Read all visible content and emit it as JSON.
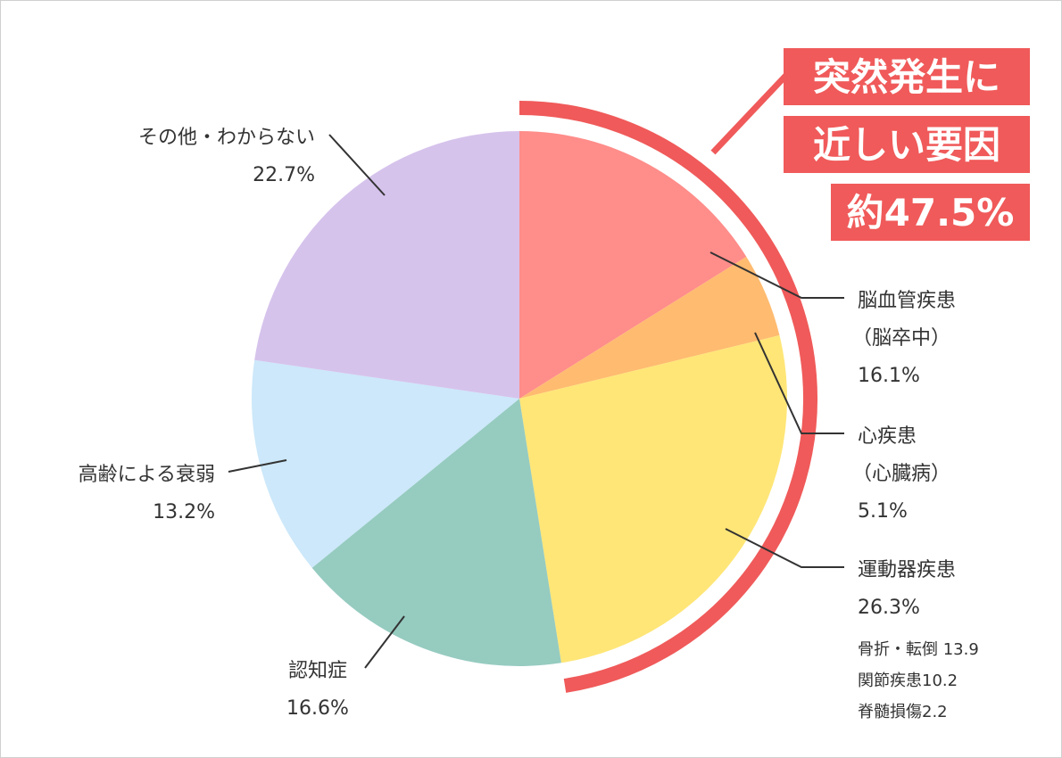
{
  "chart_data": {
    "type": "pie",
    "slices": [
      {
        "name": "脳血管疾患",
        "label_lines": [
          "脳血管疾患",
          "（脳卒中）"
        ],
        "value": 16.1,
        "value_label": "16.1%",
        "color": "#ff8d8a"
      },
      {
        "name": "心疾患",
        "label_lines": [
          "心疾患",
          "（心臓病）"
        ],
        "value": 5.1,
        "value_label": "5.1%",
        "color": "#ffbb70"
      },
      {
        "name": "運動器疾患",
        "label_lines": [
          "運動器疾患"
        ],
        "value": 26.3,
        "value_label": "26.3%",
        "color": "#ffe677",
        "details": [
          "骨折・転倒 13.9",
          "関節疾患10.2",
          "脊髄損傷2.2"
        ]
      },
      {
        "name": "認知症",
        "label_lines": [
          "認知症"
        ],
        "value": 16.6,
        "value_label": "16.6%",
        "color": "#96cbc0"
      },
      {
        "name": "高齢による衰弱",
        "label_lines": [
          "高齢による衰弱"
        ],
        "value": 13.2,
        "value_label": "13.2%",
        "color": "#cce8fa"
      },
      {
        "name": "その他・わからない",
        "label_lines": [
          "その他・わからない"
        ],
        "value": 22.7,
        "value_label": "22.7%",
        "color": "#d6c3ec"
      }
    ],
    "callout": {
      "lines": [
        "突然発生に",
        "近しい要因",
        "約47.5%"
      ],
      "color": "#f05a5a"
    }
  }
}
